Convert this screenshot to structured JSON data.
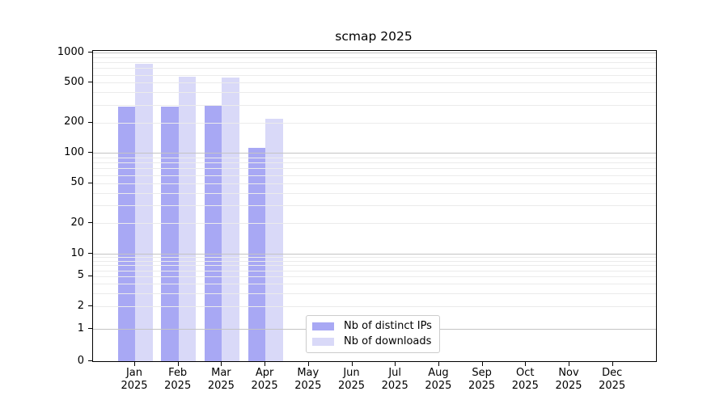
{
  "chart_data": {
    "type": "bar",
    "title": "scmap 2025",
    "x_tick_year": "2025",
    "categories": [
      "Jan",
      "Feb",
      "Mar",
      "Apr",
      "May",
      "Jun",
      "Jul",
      "Aug",
      "Sep",
      "Oct",
      "Nov",
      "Dec"
    ],
    "series": [
      {
        "name": "Nb of distinct IPs",
        "color": "#a8a8f4",
        "values": [
          290,
          288,
          293,
          112,
          0,
          0,
          0,
          0,
          0,
          0,
          0,
          0
        ]
      },
      {
        "name": "Nb of downloads",
        "color": "#d9d9f8",
        "values": [
          770,
          570,
          560,
          220,
          0,
          0,
          0,
          0,
          0,
          0,
          0,
          0
        ]
      }
    ],
    "y_ticks": [
      0,
      1,
      2,
      5,
      10,
      20,
      50,
      100,
      200,
      500,
      1000
    ],
    "ylim": [
      0,
      1000
    ],
    "y_scale": "symlog (linear 0-1, log 1-1000)",
    "grid": "horizontal major and log-minor gridlines",
    "legend_position": "inside bottom-center",
    "colors": {
      "bar_distinct_ips": "#a8a8f4",
      "bar_downloads": "#d9d9f8",
      "grid_minor": "#ebebeb",
      "grid_major": "#c4c4c4",
      "axis": "#000000",
      "legend_border": "#cccccc",
      "background": "#ffffff"
    }
  }
}
